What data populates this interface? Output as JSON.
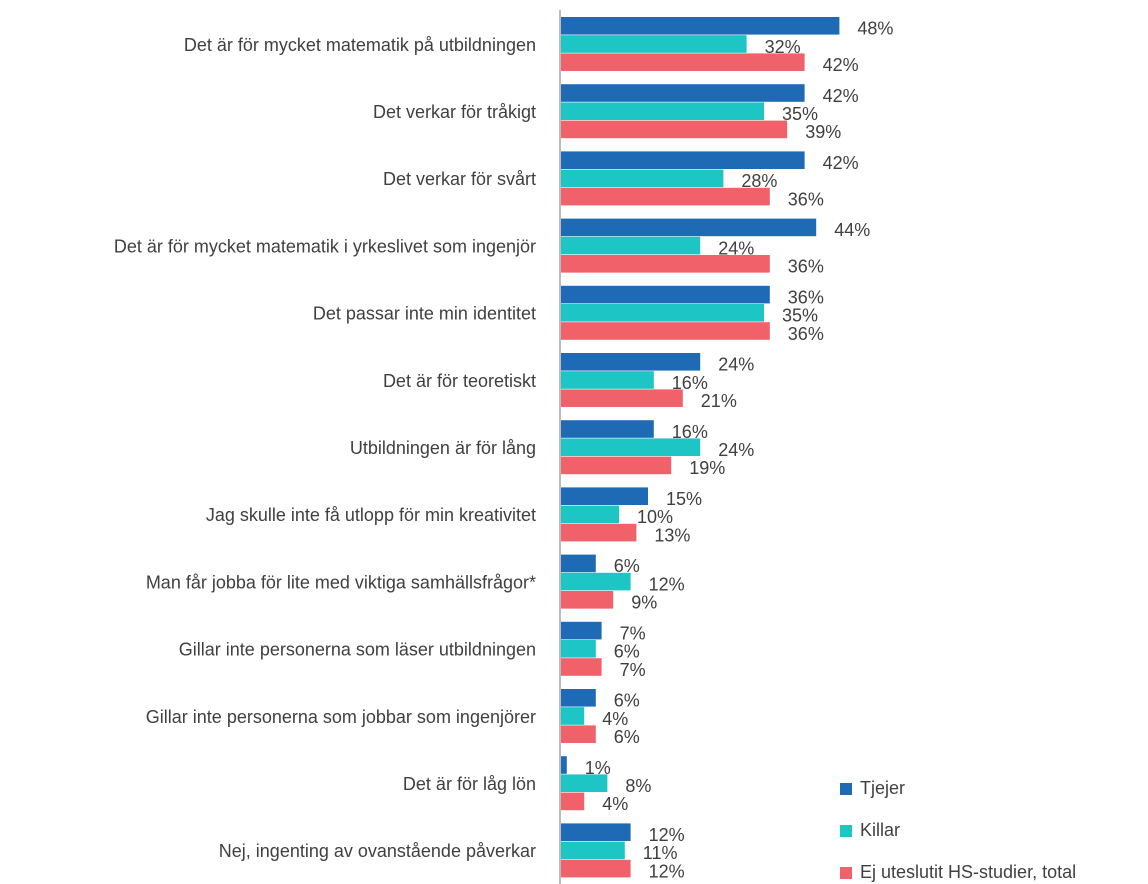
{
  "chart_data": {
    "type": "barh",
    "categories": [
      "Det är för mycket matematik på utbildningen",
      "Det verkar för tråkigt",
      "Det verkar för svårt",
      "Det är för mycket matematik i yrkeslivet som ingenjör",
      "Det passar inte min identitet",
      "Det är för teoretiskt",
      "Utbildningen är för lång",
      "Jag skulle inte få utlopp för min kreativitet",
      "Man får jobba för lite med viktiga samhällsfrågor*",
      "Gillar inte personerna som läser utbildningen",
      "Gillar inte personerna som jobbar som ingenjörer",
      "Det är för låg lön",
      "Nej, ingenting av ovanstående påverkar"
    ],
    "series": [
      {
        "name": "Tjejer",
        "color": "#1f6ab5",
        "values": [
          48,
          42,
          42,
          44,
          36,
          24,
          16,
          15,
          6,
          7,
          6,
          1,
          12
        ],
        "value_labels": [
          "48%",
          "42%",
          "42%",
          "44%",
          "36%",
          "24%",
          "16%",
          "15%",
          "6%",
          "7%",
          "6%",
          "1%",
          "12%"
        ]
      },
      {
        "name": "Killar",
        "color": "#1ec5c5",
        "values": [
          32,
          35,
          28,
          24,
          35,
          16,
          24,
          10,
          12,
          6,
          4,
          8,
          11
        ],
        "value_labels": [
          "32%",
          "35%",
          "28%",
          "24%",
          "35%",
          "16%",
          "24%",
          "10%",
          "12%",
          "6%",
          "4%",
          "8%",
          "11%"
        ]
      },
      {
        "name": "Ej uteslutit HS-studier, total",
        "color": "#f0616a",
        "values": [
          42,
          39,
          36,
          36,
          36,
          21,
          19,
          13,
          9,
          7,
          6,
          4,
          12
        ],
        "value_labels": [
          "42%",
          "39%",
          "36%",
          "36%",
          "36%",
          "21%",
          "19%",
          "13%",
          "9%",
          "7%",
          "6%",
          "4%",
          "12%"
        ]
      }
    ],
    "legend": "bottom-right"
  }
}
